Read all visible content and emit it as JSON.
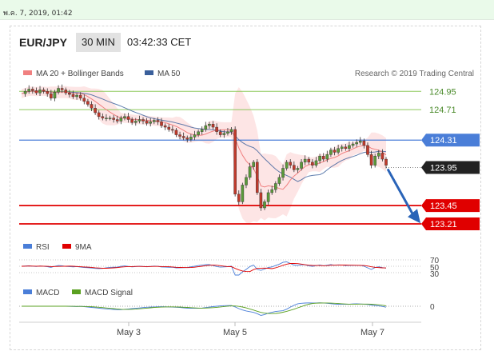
{
  "top_timestamp": "พ.ค. 7, 2019, 01:42",
  "header": {
    "pair": "EUR/JPY",
    "timeframe": "30 MIN",
    "time": "03:42:33 CET"
  },
  "legend": {
    "ma20_bb": "MA 20 + Bollinger Bands",
    "ma50": "MA 50",
    "research": "Research © 2019 Trading Central",
    "rsi": "RSI",
    "rsi_ma": "9MA",
    "macd": "MACD",
    "macd_signal": "MACD Signal"
  },
  "colors": {
    "ma20": "#f08080",
    "ma50": "#3a5f9b",
    "band_fill": "#fde0e0",
    "resistance": "#4a7ed8",
    "support": "#e00000",
    "target_line": "#8dc85a",
    "price_label": "#222222",
    "rsi": "#4a7ed8",
    "rsi_ma": "#e00000",
    "macd": "#4a7ed8",
    "macd_signal": "#5aa020",
    "candle_up": "#5a9a3a",
    "candle_down": "#c0392b",
    "arrow": "#2a64b8"
  },
  "chart_data": {
    "type": "candlestick",
    "symbol": "EUR/JPY",
    "x_tick_labels": [
      "May 3",
      "May 5",
      "May 7"
    ],
    "ylim": [
      123.0,
      125.1
    ],
    "levels": [
      {
        "label": "124.95",
        "value": 124.95,
        "kind": "target"
      },
      {
        "label": "124.71",
        "value": 124.71,
        "kind": "target"
      },
      {
        "label": "124.31",
        "value": 124.31,
        "kind": "resistance"
      },
      {
        "label": "123.95",
        "value": 123.95,
        "kind": "last_price"
      },
      {
        "label": "123.45",
        "value": 123.45,
        "kind": "support"
      },
      {
        "label": "123.21",
        "value": 123.21,
        "kind": "support"
      }
    ],
    "price_approx": [
      124.92,
      124.95,
      124.98,
      124.96,
      124.93,
      124.97,
      124.95,
      124.92,
      124.86,
      124.94,
      124.99,
      124.97,
      124.93,
      124.91,
      124.88,
      124.9,
      124.86,
      124.82,
      124.78,
      124.73,
      124.67,
      124.62,
      124.6,
      124.6,
      124.6,
      124.58,
      124.56,
      124.6,
      124.62,
      124.58,
      124.54,
      124.56,
      124.58,
      124.56,
      124.53,
      124.55,
      124.57,
      124.55,
      124.5,
      124.48,
      124.45,
      124.44,
      124.38,
      124.36,
      124.34,
      124.32,
      124.35,
      124.38,
      124.42,
      124.45,
      124.5,
      124.52,
      124.48,
      124.42,
      124.38,
      124.4,
      124.42,
      124.45,
      123.6,
      123.5,
      123.72,
      123.82,
      123.96,
      124.02,
      123.62,
      123.42,
      123.5,
      123.62,
      123.66,
      123.74,
      123.82,
      123.94,
      124.02,
      123.98,
      123.92,
      123.94,
      124.02,
      124.06,
      124.02,
      123.98,
      124.04,
      124.1,
      124.06,
      124.12,
      124.18,
      124.15,
      124.2,
      124.22,
      124.2,
      124.24,
      124.26,
      124.28,
      124.3,
      124.24,
      124.12,
      123.98,
      124.1,
      124.14,
      124.06,
      123.98
    ],
    "rsi_ticks": [
      "70",
      "50",
      "30"
    ],
    "macd_ticks": [
      "0"
    ]
  }
}
